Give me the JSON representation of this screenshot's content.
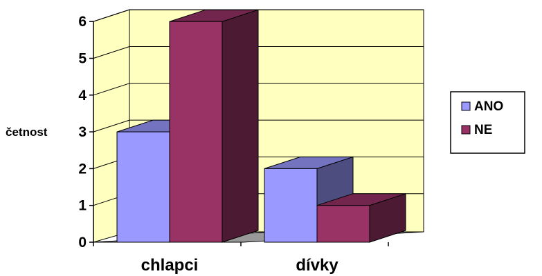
{
  "chart_data": {
    "type": "bar",
    "style": "3d-clustered-column",
    "categories": [
      "chlapci",
      "dívky"
    ],
    "series": [
      {
        "name": "ANO",
        "values": [
          3,
          2
        ],
        "color": "#9999ff"
      },
      {
        "name": "NE",
        "values": [
          6,
          1
        ],
        "color": "#993366"
      }
    ],
    "ylabel": "četnost",
    "yticks": [
      "0",
      "1",
      "2",
      "3",
      "4",
      "5",
      "6"
    ],
    "ylim": [
      0,
      6
    ],
    "grid": true,
    "wall_color": "#ffffc0",
    "legend_position": "right"
  }
}
